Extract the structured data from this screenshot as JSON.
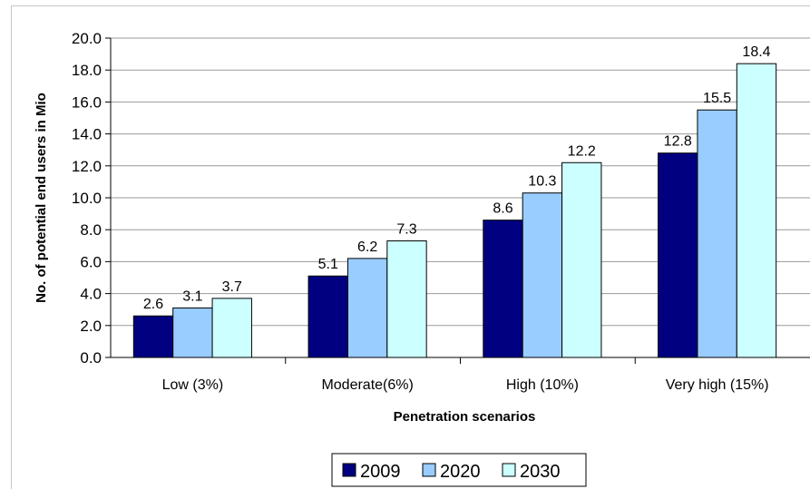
{
  "chart_data": {
    "type": "bar",
    "title": "",
    "xlabel": "Penetration scenarios",
    "ylabel": "No. of potential end users in Mio",
    "ylim": [
      0,
      20
    ],
    "yticks": [
      "0.0",
      "2.0",
      "4.0",
      "6.0",
      "8.0",
      "10.0",
      "12.0",
      "14.0",
      "16.0",
      "18.0",
      "20.0"
    ],
    "grid": true,
    "legend_position": "bottom",
    "categories": [
      "Low (3%)",
      "Moderate(6%)",
      "High (10%)",
      "Very high (15%)"
    ],
    "series": [
      {
        "name": "2009",
        "color": "#000080",
        "values": [
          2.6,
          5.1,
          8.6,
          12.8
        ],
        "labels": [
          "2.6",
          "5.1",
          "8.6",
          "12.8"
        ]
      },
      {
        "name": "2020",
        "color": "#99CCFF",
        "values": [
          3.1,
          6.2,
          10.3,
          15.5
        ],
        "labels": [
          "3.1",
          "6.2",
          "10.3",
          "15.5"
        ]
      },
      {
        "name": "2030",
        "color": "#CCFFFF",
        "values": [
          3.7,
          7.3,
          12.2,
          18.4
        ],
        "labels": [
          "3.7",
          "7.3",
          "12.2",
          "18.4"
        ]
      }
    ]
  }
}
